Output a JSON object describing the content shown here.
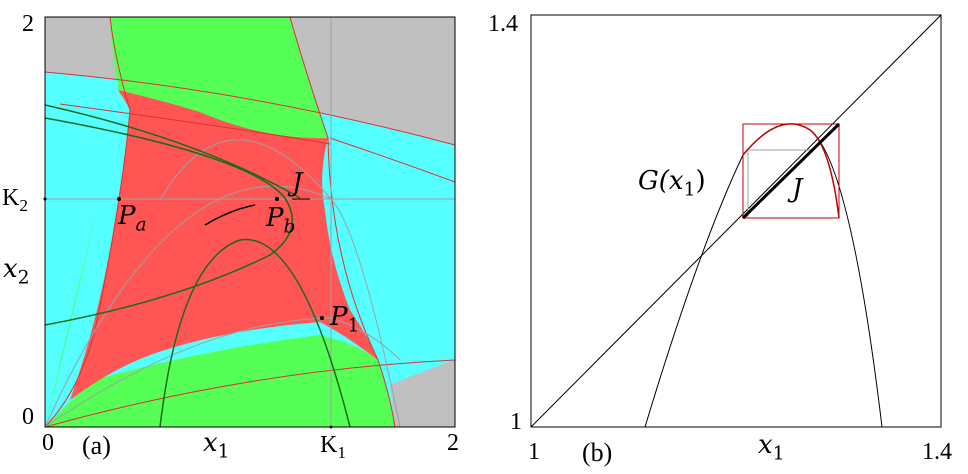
{
  "panels": [
    {
      "id": "a",
      "label": "(a)",
      "x_ticks": [
        "0",
        "2"
      ],
      "y_ticks": [
        "0",
        "2"
      ],
      "x_axis_label": "x",
      "x_axis_sub": "1",
      "y_axis_label": "x",
      "y_axis_sub": "2",
      "special_x_tick": "K",
      "special_x_sub": "1",
      "special_y_tick": "K",
      "special_y_sub": "2",
      "points": [
        {
          "name": "P",
          "sub": "a"
        },
        {
          "name": "P",
          "sub": "b"
        },
        {
          "name": "P",
          "sub": "1"
        }
      ],
      "curve_label": "J",
      "region_colors": {
        "red": "#ff5555",
        "green": "#55ff55",
        "cyan": "#55ffff",
        "gray": "#c0c0c0"
      }
    },
    {
      "id": "b",
      "label": "(b)",
      "x_ticks": [
        "1",
        "1.4"
      ],
      "y_ticks": [
        "1",
        "1.4"
      ],
      "x_axis_label": "x",
      "x_axis_sub": "1",
      "map_label": "G(x",
      "map_sub": "1",
      "map_close": ")",
      "segment_label": "J"
    }
  ]
}
